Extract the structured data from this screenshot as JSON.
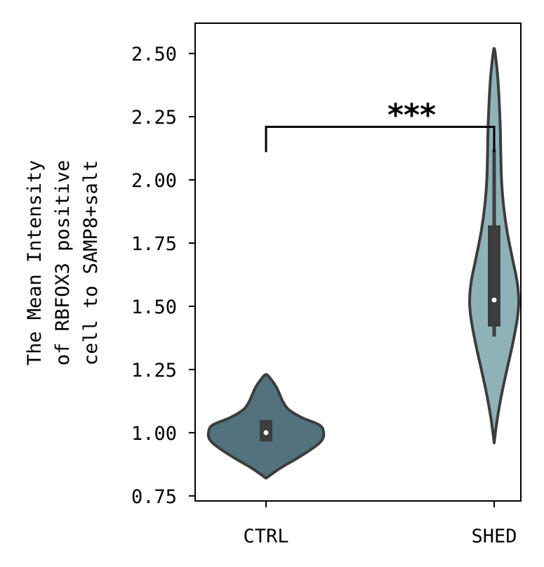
{
  "chart_data": {
    "type": "violin",
    "categories": [
      "CTRL",
      "SHED"
    ],
    "ylabel_lines": [
      "The Mean Intensity",
      "of RBFOX3 positive",
      "cell to SAMP8+salt"
    ],
    "ylim": [
      0.73,
      2.62
    ],
    "yticks": [
      0.75,
      1.0,
      1.25,
      1.5,
      1.75,
      2.0,
      2.25,
      2.5
    ],
    "ytick_labels": [
      "0.75",
      "1.00",
      "1.25",
      "1.50",
      "1.75",
      "2.00",
      "2.25",
      "2.50"
    ],
    "grid": false,
    "series": [
      {
        "category": "CTRL",
        "color": "#52737e",
        "median": 1.0,
        "q1": 0.965,
        "q3": 1.05,
        "min": 0.82,
        "max": 1.23,
        "density": [
          [
            0.82,
            0.0
          ],
          [
            0.86,
            0.25
          ],
          [
            0.9,
            0.55
          ],
          [
            0.94,
            0.82
          ],
          [
            0.97,
            0.97
          ],
          [
            1.0,
            1.0
          ],
          [
            1.03,
            0.93
          ],
          [
            1.06,
            0.62
          ],
          [
            1.09,
            0.4
          ],
          [
            1.12,
            0.3
          ],
          [
            1.15,
            0.24
          ],
          [
            1.18,
            0.18
          ],
          [
            1.21,
            0.09
          ],
          [
            1.23,
            0.0
          ]
        ]
      },
      {
        "category": "SHED",
        "color": "#8fb2b9",
        "median": 1.525,
        "q1": 1.42,
        "q3": 1.82,
        "whisker_low": 1.38,
        "whisker_high": 2.12,
        "min": 0.96,
        "max": 2.52,
        "density": [
          [
            0.96,
            0.0
          ],
          [
            1.05,
            0.12
          ],
          [
            1.15,
            0.3
          ],
          [
            1.25,
            0.52
          ],
          [
            1.35,
            0.75
          ],
          [
            1.45,
            0.94
          ],
          [
            1.52,
            1.0
          ],
          [
            1.6,
            0.93
          ],
          [
            1.7,
            0.72
          ],
          [
            1.8,
            0.52
          ],
          [
            1.9,
            0.38
          ],
          [
            2.0,
            0.3
          ],
          [
            2.1,
            0.27
          ],
          [
            2.2,
            0.25
          ],
          [
            2.3,
            0.21
          ],
          [
            2.4,
            0.15
          ],
          [
            2.47,
            0.08
          ],
          [
            2.52,
            0.0
          ]
        ]
      }
    ],
    "annotation": {
      "text": "***",
      "from": "CTRL",
      "to": "SHED",
      "bracket_top": 2.21,
      "bracket_bottom": 2.11
    }
  }
}
